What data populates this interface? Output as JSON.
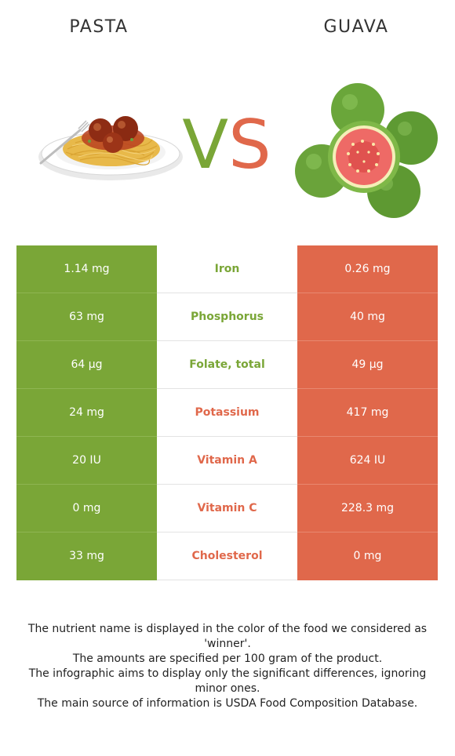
{
  "food_left": {
    "name": "PASTA",
    "color": "#7aa637",
    "image_icon": "spaghetti-meatballs-image"
  },
  "food_right": {
    "name": "GUAVA",
    "color": "#e0684b",
    "image_icon": "guava-fruit-image"
  },
  "vs": {
    "v": "V",
    "s": "S"
  },
  "rows": [
    {
      "left": "1.14 mg",
      "nutrient": "Iron",
      "right": "0.26 mg",
      "winner": "left"
    },
    {
      "left": "63 mg",
      "nutrient": "Phosphorus",
      "right": "40 mg",
      "winner": "left"
    },
    {
      "left": "64 µg",
      "nutrient": "Folate, total",
      "right": "49 µg",
      "winner": "left"
    },
    {
      "left": "24 mg",
      "nutrient": "Potassium",
      "right": "417 mg",
      "winner": "right"
    },
    {
      "left": "20 IU",
      "nutrient": "Vitamin A",
      "right": "624 IU",
      "winner": "right"
    },
    {
      "left": "0 mg",
      "nutrient": "Vitamin C",
      "right": "228.3 mg",
      "winner": "right"
    },
    {
      "left": "33 mg",
      "nutrient": "Cholesterol",
      "right": "0 mg",
      "winner": "right"
    }
  ],
  "footer": [
    "The nutrient name is displayed in the color of the food we considered as 'winner'.",
    "The amounts are specified per 100 gram of the product.",
    "The infographic aims to display only the significant differences, ignoring minor ones.",
    "The main source of information is USDA Food Composition Database."
  ]
}
